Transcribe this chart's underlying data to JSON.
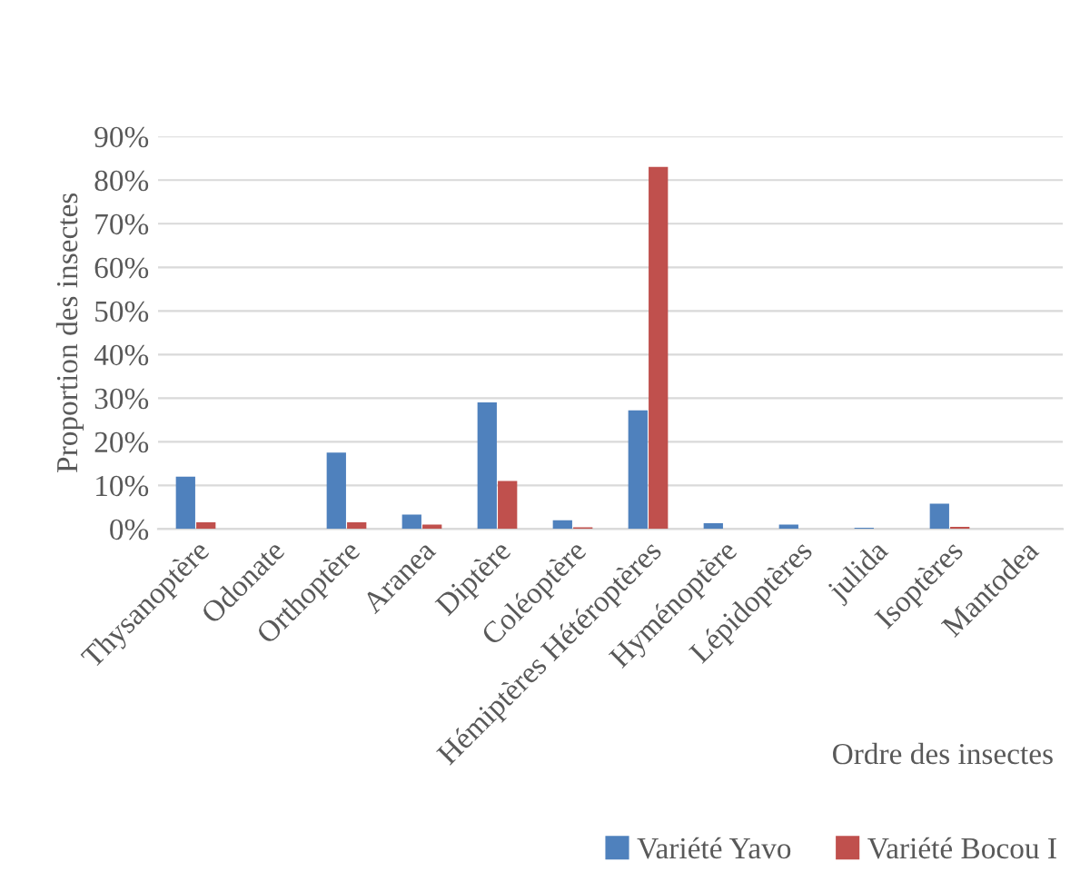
{
  "chart_data": {
    "type": "bar",
    "categories": [
      "Thysanoptère",
      "Odonate",
      "Orthoptère",
      "Aranea",
      "Diptère",
      "Coléoptère",
      "Hémiptères Hétéroptères",
      "Hyménoptère",
      "Lépidoptères",
      "julida",
      "Isoptères",
      "Mantodea"
    ],
    "series": [
      {
        "name": "Variété Yavo",
        "color": "#4f81bd",
        "values": [
          12,
          0,
          17.5,
          3.3,
          29,
          2,
          27.2,
          1.3,
          1,
          0.3,
          5.8,
          0
        ]
      },
      {
        "name": "Variété Bocou I",
        "color": "#c0504d",
        "values": [
          1.5,
          0,
          1.5,
          1,
          11,
          0.4,
          83,
          0,
          0,
          0,
          0.5,
          0
        ]
      }
    ],
    "xlabel": "Ordre des insectes",
    "ylabel": "Proportion des insectes",
    "ylim": [
      0,
      90
    ],
    "yticks": [
      {
        "value": 0,
        "label": "0%"
      },
      {
        "value": 10,
        "label": "10%"
      },
      {
        "value": 20,
        "label": "20%"
      },
      {
        "value": 30,
        "label": "30%"
      },
      {
        "value": 40,
        "label": "40%"
      },
      {
        "value": 50,
        "label": "50%"
      },
      {
        "value": 60,
        "label": "60%"
      },
      {
        "value": 70,
        "label": "70%"
      },
      {
        "value": 80,
        "label": "80%"
      },
      {
        "value": 90,
        "label": "90%"
      }
    ],
    "grid": "y",
    "legend": "bottom"
  }
}
